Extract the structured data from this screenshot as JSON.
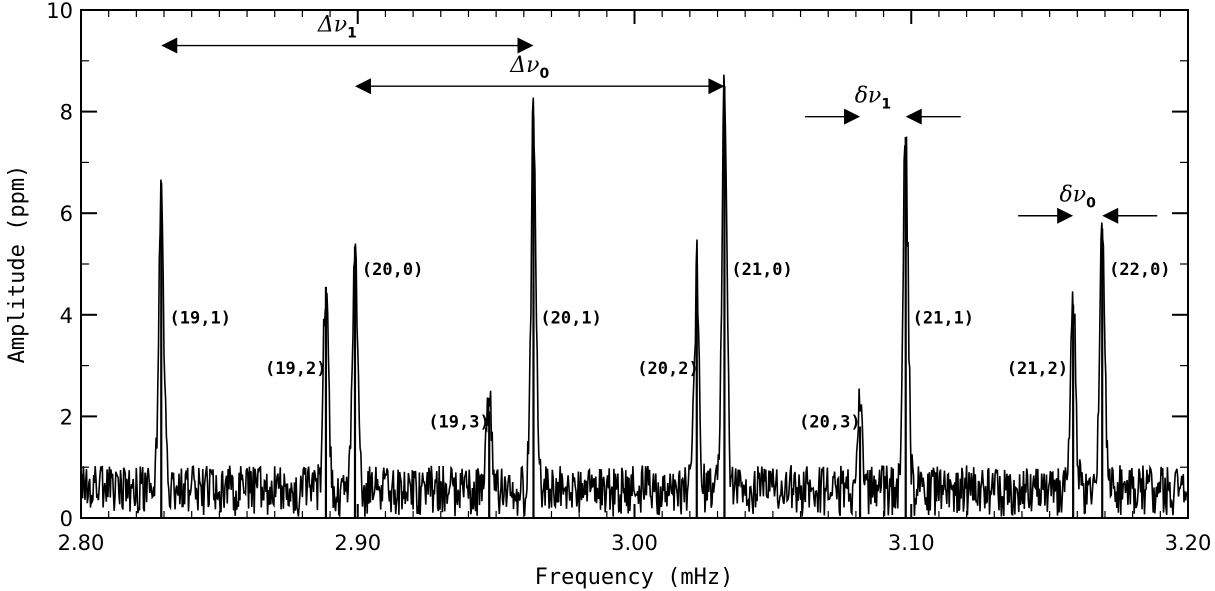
{
  "chart_data": {
    "type": "line",
    "title": "",
    "xlabel": "Frequency (mHz)",
    "ylabel": "Amplitude (ppm)",
    "xlim": [
      2.8,
      3.2
    ],
    "ylim": [
      0,
      10
    ],
    "x_ticks": [
      {
        "value": 2.8,
        "label": "2.80"
      },
      {
        "value": 2.9,
        "label": "2.90"
      },
      {
        "value": 3.0,
        "label": "3.00"
      },
      {
        "value": 3.1,
        "label": "3.10"
      },
      {
        "value": 3.2,
        "label": "3.20"
      }
    ],
    "y_ticks": [
      {
        "value": 0,
        "label": "0"
      },
      {
        "value": 2,
        "label": "2"
      },
      {
        "value": 4,
        "label": "4"
      },
      {
        "value": 6,
        "label": "6"
      },
      {
        "value": 8,
        "label": "8"
      },
      {
        "value": 10,
        "label": "10"
      }
    ],
    "grid": false,
    "series": [
      {
        "noise_level": 0.6,
        "peaks": [
          {
            "x": 2.829,
            "y": 6.6
          },
          {
            "x": 2.8885,
            "y": 4.55
          },
          {
            "x": 2.899,
            "y": 5.35
          },
          {
            "x": 2.9475,
            "y": 2.1
          },
          {
            "x": 2.9635,
            "y": 7.9
          },
          {
            "x": 3.0225,
            "y": 4.55
          },
          {
            "x": 3.0325,
            "y": 8.5
          },
          {
            "x": 3.0815,
            "y": 1.8
          },
          {
            "x": 3.098,
            "y": 7.5
          },
          {
            "x": 3.1585,
            "y": 4.2
          },
          {
            "x": 3.169,
            "y": 5.7
          }
        ]
      }
    ],
    "annotations": [
      {
        "text": "(19,1)",
        "x": 2.832,
        "y": 3.95
      },
      {
        "text": "(19,2)",
        "x": 2.8665,
        "y": 2.95
      },
      {
        "text": "(20,0)",
        "x": 2.9015,
        "y": 4.9
      },
      {
        "text": "(19,3)",
        "x": 2.9255,
        "y": 1.9
      },
      {
        "text": "(20,1)",
        "x": 2.966,
        "y": 3.95
      },
      {
        "text": "(20,2)",
        "x": 3.001,
        "y": 2.95
      },
      {
        "text": "(21,0)",
        "x": 3.035,
        "y": 4.9
      },
      {
        "text": "(20,3)",
        "x": 3.0595,
        "y": 1.9
      },
      {
        "text": "(21,1)",
        "x": 3.1005,
        "y": 3.95
      },
      {
        "text": "(21,2)",
        "x": 3.1345,
        "y": 2.95
      },
      {
        "text": "(22,0)",
        "x": 3.1715,
        "y": 4.9
      }
    ],
    "intervals": [
      {
        "symbol": "Δν",
        "subscript": "1",
        "x1": 2.829,
        "x2": 2.9635,
        "y": 9.3,
        "style": "outward"
      },
      {
        "symbol": "Δν",
        "subscript": "0",
        "x1": 2.899,
        "x2": 3.0325,
        "y": 8.5,
        "style": "outward"
      },
      {
        "symbol": "δν",
        "subscript": "1",
        "x1": 3.0815,
        "x2": 3.098,
        "y": 7.9,
        "style": "inward"
      },
      {
        "symbol": "δν",
        "subscript": "0",
        "x1": 3.1585,
        "x2": 3.169,
        "y": 5.95,
        "style": "inward"
      }
    ]
  }
}
